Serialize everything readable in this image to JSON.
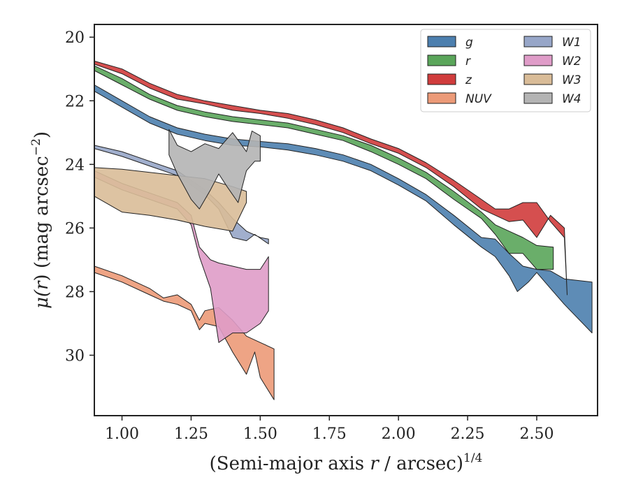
{
  "chart_data": {
    "type": "area",
    "title": "",
    "xlabel": "(Semi-major axis r / arcsec)",
    "xlabel_parts": {
      "pre": "(Semi-major axis ",
      "var": "r",
      "post": " / arcsec)",
      "sup": "1/4"
    },
    "ylabel": "μ(r) (mag arcsec⁻²)",
    "ylabel_parts": {
      "mu": "μ(",
      "var": "r",
      "mid": ") (mag arcsec",
      "sup": "−2",
      "end": ")"
    },
    "xlim": [
      0.9,
      2.72
    ],
    "ylim": [
      31.9,
      19.6
    ],
    "y_inverted": true,
    "grid": false,
    "legend_placement": "top-right",
    "legend_columns": 2,
    "x_ticks": [
      1.0,
      1.25,
      1.5,
      1.75,
      2.0,
      2.25,
      2.5
    ],
    "x_tick_labels": [
      "1.00",
      "1.25",
      "1.50",
      "1.75",
      "2.00",
      "2.25",
      "2.50"
    ],
    "y_ticks": [
      20,
      22,
      24,
      26,
      28,
      30
    ],
    "y_tick_labels": [
      "20",
      "22",
      "24",
      "26",
      "28",
      "30"
    ],
    "series": [
      {
        "name": "g",
        "color": "#4c7fae",
        "upper": [
          [
            0.9,
            21.5
          ],
          [
            1.0,
            22.0
          ],
          [
            1.1,
            22.5
          ],
          [
            1.2,
            22.85
          ],
          [
            1.3,
            23.05
          ],
          [
            1.4,
            23.2
          ],
          [
            1.5,
            23.28
          ],
          [
            1.6,
            23.35
          ],
          [
            1.7,
            23.5
          ],
          [
            1.8,
            23.7
          ],
          [
            1.9,
            24.0
          ],
          [
            2.0,
            24.45
          ],
          [
            2.1,
            24.95
          ],
          [
            2.2,
            25.6
          ],
          [
            2.3,
            26.3
          ],
          [
            2.35,
            26.35
          ],
          [
            2.4,
            26.8
          ],
          [
            2.45,
            27.2
          ],
          [
            2.5,
            27.3
          ],
          [
            2.55,
            27.35
          ],
          [
            2.6,
            27.6
          ],
          [
            2.65,
            27.65
          ],
          [
            2.7,
            27.7
          ]
        ],
        "lower": [
          [
            0.9,
            21.7
          ],
          [
            1.0,
            22.2
          ],
          [
            1.1,
            22.7
          ],
          [
            1.2,
            23.05
          ],
          [
            1.3,
            23.25
          ],
          [
            1.4,
            23.4
          ],
          [
            1.5,
            23.45
          ],
          [
            1.6,
            23.55
          ],
          [
            1.7,
            23.7
          ],
          [
            1.8,
            23.9
          ],
          [
            1.9,
            24.2
          ],
          [
            2.0,
            24.65
          ],
          [
            2.1,
            25.15
          ],
          [
            2.2,
            25.9
          ],
          [
            2.3,
            26.6
          ],
          [
            2.35,
            26.9
          ],
          [
            2.4,
            27.5
          ],
          [
            2.43,
            28.0
          ],
          [
            2.47,
            27.7
          ],
          [
            2.5,
            27.4
          ],
          [
            2.55,
            27.9
          ],
          [
            2.6,
            28.4
          ],
          [
            2.7,
            29.3
          ]
        ]
      },
      {
        "name": "r",
        "color": "#5aa55a",
        "upper": [
          [
            0.9,
            20.9
          ],
          [
            1.0,
            21.3
          ],
          [
            1.1,
            21.8
          ],
          [
            1.2,
            22.15
          ],
          [
            1.3,
            22.35
          ],
          [
            1.4,
            22.5
          ],
          [
            1.5,
            22.6
          ],
          [
            1.6,
            22.7
          ],
          [
            1.7,
            22.9
          ],
          [
            1.8,
            23.1
          ],
          [
            1.9,
            23.4
          ],
          [
            2.0,
            23.8
          ],
          [
            2.1,
            24.25
          ],
          [
            2.2,
            24.85
          ],
          [
            2.3,
            25.5
          ],
          [
            2.35,
            25.9
          ],
          [
            2.4,
            26.1
          ],
          [
            2.45,
            26.3
          ],
          [
            2.5,
            26.55
          ],
          [
            2.56,
            26.6
          ]
        ],
        "lower": [
          [
            0.9,
            21.05
          ],
          [
            1.0,
            21.5
          ],
          [
            1.1,
            21.95
          ],
          [
            1.2,
            22.3
          ],
          [
            1.3,
            22.5
          ],
          [
            1.4,
            22.65
          ],
          [
            1.5,
            22.75
          ],
          [
            1.6,
            22.85
          ],
          [
            1.7,
            23.05
          ],
          [
            1.8,
            23.25
          ],
          [
            1.9,
            23.6
          ],
          [
            2.0,
            24.0
          ],
          [
            2.1,
            24.45
          ],
          [
            2.2,
            25.1
          ],
          [
            2.3,
            25.7
          ],
          [
            2.35,
            26.2
          ],
          [
            2.4,
            26.8
          ],
          [
            2.45,
            26.8
          ],
          [
            2.5,
            27.3
          ],
          [
            2.56,
            27.3
          ]
        ]
      },
      {
        "name": "z",
        "color": "#d03c3c",
        "upper": [
          [
            0.9,
            20.75
          ],
          [
            1.0,
            21.0
          ],
          [
            1.1,
            21.45
          ],
          [
            1.2,
            21.8
          ],
          [
            1.3,
            22.0
          ],
          [
            1.4,
            22.15
          ],
          [
            1.5,
            22.3
          ],
          [
            1.6,
            22.4
          ],
          [
            1.7,
            22.6
          ],
          [
            1.8,
            22.85
          ],
          [
            1.9,
            23.2
          ],
          [
            2.0,
            23.5
          ],
          [
            2.1,
            23.95
          ],
          [
            2.2,
            24.5
          ],
          [
            2.3,
            25.1
          ],
          [
            2.35,
            25.4
          ],
          [
            2.4,
            25.4
          ],
          [
            2.45,
            25.2
          ],
          [
            2.5,
            25.2
          ],
          [
            2.55,
            25.8
          ],
          [
            2.6,
            26.3
          ],
          [
            2.61,
            28.1
          ]
        ],
        "lower": [
          [
            0.9,
            20.85
          ],
          [
            1.0,
            21.15
          ],
          [
            1.1,
            21.6
          ],
          [
            1.2,
            21.95
          ],
          [
            1.3,
            22.1
          ],
          [
            1.4,
            22.3
          ],
          [
            1.5,
            22.4
          ],
          [
            1.6,
            22.55
          ],
          [
            1.7,
            22.75
          ],
          [
            1.8,
            23.0
          ],
          [
            1.9,
            23.35
          ],
          [
            2.0,
            23.65
          ],
          [
            2.1,
            24.1
          ],
          [
            2.2,
            24.7
          ],
          [
            2.3,
            25.4
          ],
          [
            2.35,
            25.6
          ],
          [
            2.4,
            25.8
          ],
          [
            2.45,
            25.75
          ],
          [
            2.5,
            26.3
          ],
          [
            2.55,
            25.6
          ],
          [
            2.6,
            26.0
          ],
          [
            2.61,
            28.1
          ]
        ]
      },
      {
        "name": "NUV",
        "color": "#ec9a78",
        "upper": [
          [
            0.9,
            27.2
          ],
          [
            1.0,
            27.5
          ],
          [
            1.1,
            27.9
          ],
          [
            1.15,
            28.2
          ],
          [
            1.2,
            28.1
          ],
          [
            1.25,
            28.4
          ],
          [
            1.28,
            28.9
          ],
          [
            1.3,
            28.6
          ],
          [
            1.35,
            28.5
          ],
          [
            1.4,
            28.9
          ],
          [
            1.45,
            29.4
          ],
          [
            1.5,
            29.6
          ],
          [
            1.55,
            29.8
          ]
        ],
        "lower": [
          [
            0.9,
            27.4
          ],
          [
            1.0,
            27.7
          ],
          [
            1.1,
            28.1
          ],
          [
            1.15,
            28.3
          ],
          [
            1.2,
            28.4
          ],
          [
            1.25,
            28.6
          ],
          [
            1.28,
            29.2
          ],
          [
            1.3,
            29.0
          ],
          [
            1.35,
            29.1
          ],
          [
            1.4,
            29.9
          ],
          [
            1.45,
            30.6
          ],
          [
            1.48,
            29.9
          ],
          [
            1.5,
            30.7
          ],
          [
            1.55,
            31.4
          ]
        ]
      },
      {
        "name": "W1",
        "color": "#97a6c8",
        "upper": [
          [
            0.9,
            23.4
          ],
          [
            1.0,
            23.6
          ],
          [
            1.1,
            23.9
          ],
          [
            1.2,
            24.2
          ],
          [
            1.3,
            24.8
          ],
          [
            1.35,
            25.2
          ],
          [
            1.4,
            25.7
          ],
          [
            1.45,
            26.1
          ],
          [
            1.5,
            26.3
          ],
          [
            1.53,
            26.35
          ]
        ],
        "lower": [
          [
            0.9,
            23.5
          ],
          [
            1.0,
            23.75
          ],
          [
            1.1,
            24.05
          ],
          [
            1.2,
            24.35
          ],
          [
            1.3,
            24.95
          ],
          [
            1.35,
            25.4
          ],
          [
            1.4,
            26.3
          ],
          [
            1.45,
            26.4
          ],
          [
            1.48,
            26.2
          ],
          [
            1.53,
            26.5
          ]
        ]
      },
      {
        "name": "W2",
        "color": "#df9cc8",
        "upper": [
          [
            0.9,
            24.2
          ],
          [
            1.0,
            24.6
          ],
          [
            1.1,
            24.9
          ],
          [
            1.2,
            25.2
          ],
          [
            1.25,
            25.6
          ],
          [
            1.28,
            26.6
          ],
          [
            1.32,
            27.0
          ],
          [
            1.35,
            27.1
          ],
          [
            1.4,
            27.2
          ],
          [
            1.45,
            27.3
          ],
          [
            1.5,
            27.3
          ],
          [
            1.53,
            26.9
          ]
        ],
        "lower": [
          [
            0.9,
            24.4
          ],
          [
            1.0,
            24.8
          ],
          [
            1.1,
            25.1
          ],
          [
            1.2,
            25.4
          ],
          [
            1.25,
            25.9
          ],
          [
            1.28,
            26.9
          ],
          [
            1.32,
            27.9
          ],
          [
            1.35,
            29.6
          ],
          [
            1.4,
            29.3
          ],
          [
            1.45,
            29.3
          ],
          [
            1.5,
            29.0
          ],
          [
            1.53,
            28.6
          ]
        ]
      },
      {
        "name": "W3",
        "color": "#d9bc98",
        "upper": [
          [
            0.9,
            24.1
          ],
          [
            1.0,
            24.15
          ],
          [
            1.1,
            24.25
          ],
          [
            1.2,
            24.35
          ],
          [
            1.3,
            24.45
          ],
          [
            1.4,
            24.7
          ],
          [
            1.45,
            24.85
          ]
        ],
        "lower": [
          [
            0.9,
            25.0
          ],
          [
            1.0,
            25.5
          ],
          [
            1.1,
            25.6
          ],
          [
            1.2,
            25.75
          ],
          [
            1.3,
            25.95
          ],
          [
            1.4,
            26.1
          ],
          [
            1.45,
            25.2
          ]
        ]
      },
      {
        "name": "W4",
        "color": "#b4b4b4",
        "upper": [
          [
            1.17,
            22.9
          ],
          [
            1.2,
            23.4
          ],
          [
            1.25,
            23.6
          ],
          [
            1.3,
            23.35
          ],
          [
            1.35,
            23.5
          ],
          [
            1.4,
            23.0
          ],
          [
            1.45,
            23.6
          ],
          [
            1.47,
            22.95
          ],
          [
            1.5,
            23.1
          ]
        ],
        "lower": [
          [
            1.17,
            23.7
          ],
          [
            1.2,
            24.3
          ],
          [
            1.25,
            25.1
          ],
          [
            1.28,
            25.4
          ],
          [
            1.32,
            24.8
          ],
          [
            1.35,
            24.3
          ],
          [
            1.38,
            24.7
          ],
          [
            1.42,
            25.2
          ],
          [
            1.45,
            24.2
          ],
          [
            1.48,
            23.9
          ],
          [
            1.5,
            23.9
          ]
        ]
      }
    ]
  }
}
